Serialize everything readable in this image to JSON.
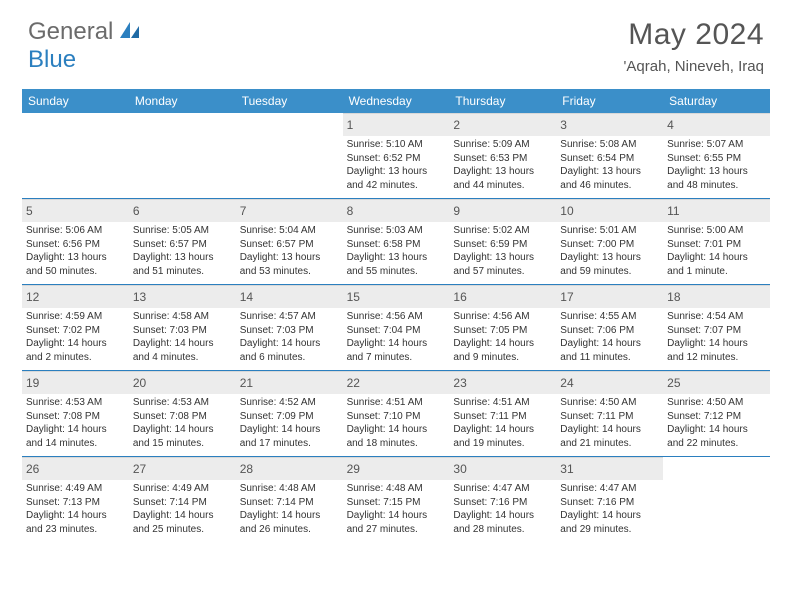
{
  "logo": {
    "part1": "General",
    "part2": "Blue"
  },
  "title": "May 2024",
  "location": "'Aqrah, Nineveh, Iraq",
  "colors": {
    "header_bg": "#3b8fc9",
    "rule": "#2b7fbf",
    "daynum_bg": "#ececec",
    "text": "#333333",
    "muted": "#555555",
    "logo_gray": "#6b6b6b",
    "logo_blue": "#2b7fbf",
    "page_bg": "#ffffff"
  },
  "day_headers": [
    "Sunday",
    "Monday",
    "Tuesday",
    "Wednesday",
    "Thursday",
    "Friday",
    "Saturday"
  ],
  "weeks": [
    [
      {
        "empty": true
      },
      {
        "empty": true
      },
      {
        "empty": true
      },
      {
        "day": "1",
        "sunrise": "Sunrise: 5:10 AM",
        "sunset": "Sunset: 6:52 PM",
        "daylight1": "Daylight: 13 hours",
        "daylight2": "and 42 minutes."
      },
      {
        "day": "2",
        "sunrise": "Sunrise: 5:09 AM",
        "sunset": "Sunset: 6:53 PM",
        "daylight1": "Daylight: 13 hours",
        "daylight2": "and 44 minutes."
      },
      {
        "day": "3",
        "sunrise": "Sunrise: 5:08 AM",
        "sunset": "Sunset: 6:54 PM",
        "daylight1": "Daylight: 13 hours",
        "daylight2": "and 46 minutes."
      },
      {
        "day": "4",
        "sunrise": "Sunrise: 5:07 AM",
        "sunset": "Sunset: 6:55 PM",
        "daylight1": "Daylight: 13 hours",
        "daylight2": "and 48 minutes."
      }
    ],
    [
      {
        "day": "5",
        "sunrise": "Sunrise: 5:06 AM",
        "sunset": "Sunset: 6:56 PM",
        "daylight1": "Daylight: 13 hours",
        "daylight2": "and 50 minutes."
      },
      {
        "day": "6",
        "sunrise": "Sunrise: 5:05 AM",
        "sunset": "Sunset: 6:57 PM",
        "daylight1": "Daylight: 13 hours",
        "daylight2": "and 51 minutes."
      },
      {
        "day": "7",
        "sunrise": "Sunrise: 5:04 AM",
        "sunset": "Sunset: 6:57 PM",
        "daylight1": "Daylight: 13 hours",
        "daylight2": "and 53 minutes."
      },
      {
        "day": "8",
        "sunrise": "Sunrise: 5:03 AM",
        "sunset": "Sunset: 6:58 PM",
        "daylight1": "Daylight: 13 hours",
        "daylight2": "and 55 minutes."
      },
      {
        "day": "9",
        "sunrise": "Sunrise: 5:02 AM",
        "sunset": "Sunset: 6:59 PM",
        "daylight1": "Daylight: 13 hours",
        "daylight2": "and 57 minutes."
      },
      {
        "day": "10",
        "sunrise": "Sunrise: 5:01 AM",
        "sunset": "Sunset: 7:00 PM",
        "daylight1": "Daylight: 13 hours",
        "daylight2": "and 59 minutes."
      },
      {
        "day": "11",
        "sunrise": "Sunrise: 5:00 AM",
        "sunset": "Sunset: 7:01 PM",
        "daylight1": "Daylight: 14 hours",
        "daylight2": "and 1 minute."
      }
    ],
    [
      {
        "day": "12",
        "sunrise": "Sunrise: 4:59 AM",
        "sunset": "Sunset: 7:02 PM",
        "daylight1": "Daylight: 14 hours",
        "daylight2": "and 2 minutes."
      },
      {
        "day": "13",
        "sunrise": "Sunrise: 4:58 AM",
        "sunset": "Sunset: 7:03 PM",
        "daylight1": "Daylight: 14 hours",
        "daylight2": "and 4 minutes."
      },
      {
        "day": "14",
        "sunrise": "Sunrise: 4:57 AM",
        "sunset": "Sunset: 7:03 PM",
        "daylight1": "Daylight: 14 hours",
        "daylight2": "and 6 minutes."
      },
      {
        "day": "15",
        "sunrise": "Sunrise: 4:56 AM",
        "sunset": "Sunset: 7:04 PM",
        "daylight1": "Daylight: 14 hours",
        "daylight2": "and 7 minutes."
      },
      {
        "day": "16",
        "sunrise": "Sunrise: 4:56 AM",
        "sunset": "Sunset: 7:05 PM",
        "daylight1": "Daylight: 14 hours",
        "daylight2": "and 9 minutes."
      },
      {
        "day": "17",
        "sunrise": "Sunrise: 4:55 AM",
        "sunset": "Sunset: 7:06 PM",
        "daylight1": "Daylight: 14 hours",
        "daylight2": "and 11 minutes."
      },
      {
        "day": "18",
        "sunrise": "Sunrise: 4:54 AM",
        "sunset": "Sunset: 7:07 PM",
        "daylight1": "Daylight: 14 hours",
        "daylight2": "and 12 minutes."
      }
    ],
    [
      {
        "day": "19",
        "sunrise": "Sunrise: 4:53 AM",
        "sunset": "Sunset: 7:08 PM",
        "daylight1": "Daylight: 14 hours",
        "daylight2": "and 14 minutes."
      },
      {
        "day": "20",
        "sunrise": "Sunrise: 4:53 AM",
        "sunset": "Sunset: 7:08 PM",
        "daylight1": "Daylight: 14 hours",
        "daylight2": "and 15 minutes."
      },
      {
        "day": "21",
        "sunrise": "Sunrise: 4:52 AM",
        "sunset": "Sunset: 7:09 PM",
        "daylight1": "Daylight: 14 hours",
        "daylight2": "and 17 minutes."
      },
      {
        "day": "22",
        "sunrise": "Sunrise: 4:51 AM",
        "sunset": "Sunset: 7:10 PM",
        "daylight1": "Daylight: 14 hours",
        "daylight2": "and 18 minutes."
      },
      {
        "day": "23",
        "sunrise": "Sunrise: 4:51 AM",
        "sunset": "Sunset: 7:11 PM",
        "daylight1": "Daylight: 14 hours",
        "daylight2": "and 19 minutes."
      },
      {
        "day": "24",
        "sunrise": "Sunrise: 4:50 AM",
        "sunset": "Sunset: 7:11 PM",
        "daylight1": "Daylight: 14 hours",
        "daylight2": "and 21 minutes."
      },
      {
        "day": "25",
        "sunrise": "Sunrise: 4:50 AM",
        "sunset": "Sunset: 7:12 PM",
        "daylight1": "Daylight: 14 hours",
        "daylight2": "and 22 minutes."
      }
    ],
    [
      {
        "day": "26",
        "sunrise": "Sunrise: 4:49 AM",
        "sunset": "Sunset: 7:13 PM",
        "daylight1": "Daylight: 14 hours",
        "daylight2": "and 23 minutes."
      },
      {
        "day": "27",
        "sunrise": "Sunrise: 4:49 AM",
        "sunset": "Sunset: 7:14 PM",
        "daylight1": "Daylight: 14 hours",
        "daylight2": "and 25 minutes."
      },
      {
        "day": "28",
        "sunrise": "Sunrise: 4:48 AM",
        "sunset": "Sunset: 7:14 PM",
        "daylight1": "Daylight: 14 hours",
        "daylight2": "and 26 minutes."
      },
      {
        "day": "29",
        "sunrise": "Sunrise: 4:48 AM",
        "sunset": "Sunset: 7:15 PM",
        "daylight1": "Daylight: 14 hours",
        "daylight2": "and 27 minutes."
      },
      {
        "day": "30",
        "sunrise": "Sunrise: 4:47 AM",
        "sunset": "Sunset: 7:16 PM",
        "daylight1": "Daylight: 14 hours",
        "daylight2": "and 28 minutes."
      },
      {
        "day": "31",
        "sunrise": "Sunrise: 4:47 AM",
        "sunset": "Sunset: 7:16 PM",
        "daylight1": "Daylight: 14 hours",
        "daylight2": "and 29 minutes."
      },
      {
        "empty": true
      }
    ]
  ]
}
